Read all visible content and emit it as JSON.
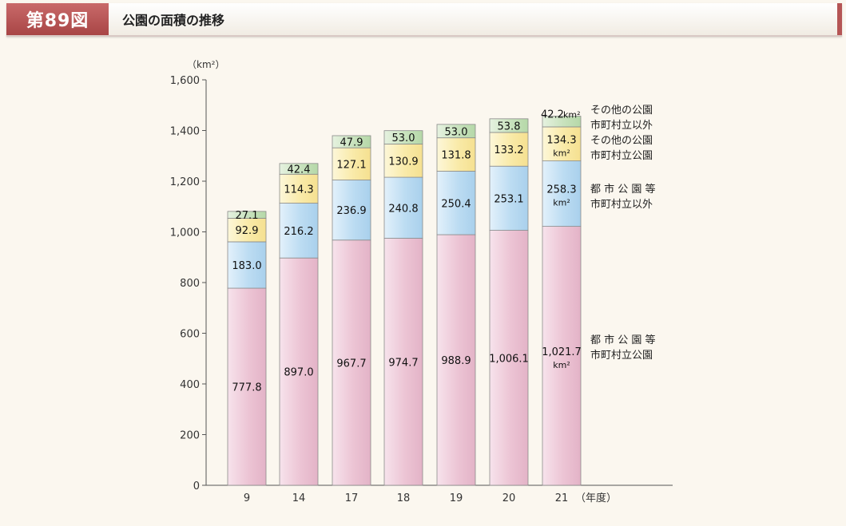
{
  "header": {
    "figure_number": "第89図",
    "title": "公園の面積の推移"
  },
  "chart_data": {
    "type": "bar",
    "stacked": true,
    "unit_label": "（km²）",
    "year_unit_label": "（年度）",
    "categories": [
      "9",
      "14",
      "17",
      "18",
      "19",
      "20",
      "21"
    ],
    "ylim": [
      0,
      1600
    ],
    "yticks": [
      0,
      200,
      400,
      600,
      800,
      1000,
      1200,
      1400,
      1600
    ],
    "ytick_labels": [
      "0",
      "200",
      "400",
      "600",
      "800",
      "1,000",
      "1,200",
      "1,400",
      "1,600"
    ],
    "series": [
      {
        "name": "都市公園等 市町村立公園",
        "values": [
          777.8,
          897.0,
          967.7,
          974.7,
          988.9,
          1006.1,
          1021.7
        ],
        "labels": [
          "777.8",
          "897.0",
          "967.7",
          "974.7",
          "988.9",
          "1,006.1",
          "1,021.7"
        ],
        "color": "#f0c9d9"
      },
      {
        "name": "都市公園等 市町村立以外",
        "values": [
          183.0,
          216.2,
          236.9,
          240.8,
          250.4,
          253.1,
          258.3
        ],
        "labels": [
          "183.0",
          "216.2",
          "236.9",
          "240.8",
          "250.4",
          "253.1",
          "258.3"
        ],
        "color": "#c6e2f5"
      },
      {
        "name": "その他の公園 市町村立公園",
        "values": [
          92.9,
          114.3,
          127.1,
          130.9,
          131.8,
          133.2,
          134.3
        ],
        "labels": [
          "92.9",
          "114.3",
          "127.1",
          "130.9",
          "131.8",
          "133.2",
          "134.3"
        ],
        "color": "#fbefb9"
      },
      {
        "name": "その他の公園 市町村立以外",
        "values": [
          27.1,
          42.4,
          47.9,
          53.0,
          53.0,
          53.8,
          42.2
        ],
        "labels": [
          "27.1",
          "42.4",
          "47.9",
          "53.0",
          "53.0",
          "53.8",
          "42.2"
        ],
        "color": "#cfe5c6"
      }
    ],
    "last_bar_unit": "km²",
    "legend": [
      {
        "line1": "その他の公園",
        "line2": "市町村立以外"
      },
      {
        "line1": "その他の公園",
        "line2": "市町村立公園"
      },
      {
        "line1": "都 市 公 園 等",
        "line2": "市町村立以外"
      },
      {
        "line1": "都 市 公 園 等",
        "line2": "市町村立公園"
      }
    ]
  }
}
